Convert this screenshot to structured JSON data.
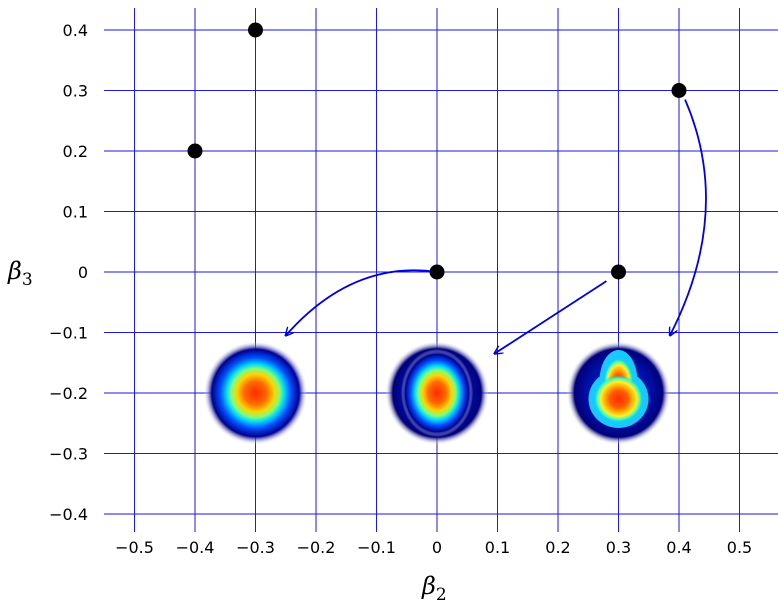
{
  "chart_data": {
    "type": "scatter",
    "xlabel": "β",
    "xlabel_sub": "2",
    "ylabel": "β",
    "ylabel_sub": "3",
    "xlim": [
      -0.55,
      0.57
    ],
    "ylim": [
      -0.42,
      0.42
    ],
    "grid": true,
    "xticks": [
      -0.5,
      -0.4,
      -0.3,
      -0.2,
      -0.1,
      0,
      0.1,
      0.2,
      0.3,
      0.4,
      0.5
    ],
    "xtick_labels": [
      "−0.5",
      "−0.4",
      "−0.3",
      "−0.2",
      "−0.1",
      "0",
      "0.1",
      "0.2",
      "0.3",
      "0.4",
      "0.5"
    ],
    "yticks": [
      0.4,
      0.3,
      0.2,
      0.1,
      0,
      -0.1,
      -0.2,
      -0.3,
      -0.4
    ],
    "ytick_labels": [
      "0.4",
      "0.3",
      "0.2",
      "0.1",
      "0",
      "−0.1",
      "−0.2",
      "−0.3",
      "−0.4"
    ],
    "points": [
      {
        "x": -0.3,
        "y": 0.4
      },
      {
        "x": -0.4,
        "y": 0.2
      },
      {
        "x": 0.4,
        "y": 0.3
      },
      {
        "x": 0.0,
        "y": 0.0
      },
      {
        "x": 0.3,
        "y": 0.0
      }
    ],
    "density_images": [
      {
        "x": -0.3,
        "y": -0.2,
        "shape": "spherical"
      },
      {
        "x": 0.0,
        "y": -0.2,
        "shape": "slightly-elongated"
      },
      {
        "x": 0.3,
        "y": -0.2,
        "shape": "pear"
      }
    ],
    "arrows": [
      {
        "from": [
          0.0,
          0.0
        ],
        "to": [
          -0.25,
          -0.105
        ]
      },
      {
        "from": [
          0.28,
          -0.015
        ],
        "to": [
          0.095,
          -0.135
        ]
      },
      {
        "from": [
          0.41,
          0.285
        ],
        "to": [
          0.385,
          -0.105
        ]
      }
    ],
    "colors": {
      "grid": "#1a1ae0",
      "arrow": "#0000e0",
      "point": "#000000"
    }
  }
}
